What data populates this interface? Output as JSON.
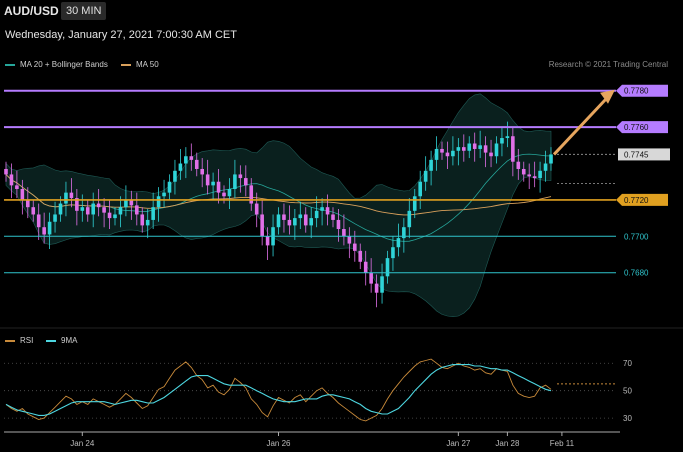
{
  "header": {
    "symbol": "AUD/USD",
    "timeframe": "30 MIN",
    "datetime": "Wednesday, January 27, 2021 7:00:30 AM CET"
  },
  "legend": {
    "bb_label": "MA 20 + Bollinger Bands",
    "bb_color": "#26a69a",
    "ma50_label": "MA 50",
    "ma50_color": "#d9a05b"
  },
  "credit": "Research © 2021 Trading Central",
  "rsi_legend": {
    "rsi_label": "RSI",
    "rsi_color": "#c88a3a",
    "ma_label": "9MA",
    "ma_color": "#4dd6e0"
  },
  "chart_data": {
    "type": "candlestick",
    "ylim": [
      0.7654,
      0.7787
    ],
    "levels": [
      {
        "value": 0.778,
        "label": "0.7780",
        "color": "#b57cff",
        "style": "resistance"
      },
      {
        "value": 0.776,
        "label": "0.7760",
        "color": "#b57cff",
        "style": "resistance"
      },
      {
        "value": 0.7745,
        "label": "0.7745",
        "color": "#d8d8d8",
        "style": "pivot"
      },
      {
        "value": 0.772,
        "label": "0.7720",
        "color": "#e0a020",
        "style": "support"
      },
      {
        "value": 0.77,
        "label": "0.7700",
        "color": "#2fc4cc",
        "style": "support"
      },
      {
        "value": 0.768,
        "label": "0.7680",
        "color": "#2fc4cc",
        "style": "support"
      }
    ],
    "arrow": {
      "from": 0.7745,
      "to": 0.778
    },
    "close_series": [
      0.7734,
      0.7728,
      0.7726,
      0.772,
      0.7716,
      0.7712,
      0.7705,
      0.7701,
      0.7708,
      0.7712,
      0.7718,
      0.7724,
      0.7721,
      0.7714,
      0.7716,
      0.7712,
      0.7718,
      0.7716,
      0.7713,
      0.771,
      0.7712,
      0.7716,
      0.772,
      0.7717,
      0.7712,
      0.7706,
      0.7709,
      0.7716,
      0.7722,
      0.7724,
      0.773,
      0.7736,
      0.774,
      0.7744,
      0.7742,
      0.7737,
      0.7734,
      0.7728,
      0.773,
      0.7724,
      0.7722,
      0.7726,
      0.7734,
      0.7732,
      0.7728,
      0.7718,
      0.7712,
      0.77,
      0.7695,
      0.7705,
      0.7712,
      0.7709,
      0.7706,
      0.771,
      0.7712,
      0.7706,
      0.771,
      0.7714,
      0.7716,
      0.7712,
      0.7709,
      0.7704,
      0.77,
      0.7696,
      0.7692,
      0.7686,
      0.768,
      0.7674,
      0.7669,
      0.7678,
      0.7688,
      0.7694,
      0.7699,
      0.7705,
      0.7714,
      0.7722,
      0.773,
      0.7736,
      0.7742,
      0.7748,
      0.7746,
      0.7744,
      0.7747,
      0.7749,
      0.7747,
      0.7751,
      0.7748,
      0.775,
      0.7746,
      0.7744,
      0.7751,
      0.7754,
      0.7755,
      0.7741,
      0.7737,
      0.7734,
      0.7733,
      0.7732,
      0.7736,
      0.774,
      0.7745
    ],
    "x_ticks": [
      {
        "label": "Jan 24",
        "index": 14
      },
      {
        "label": "Jan 26",
        "index": 50
      },
      {
        "label": "Jan 27",
        "index": 83
      },
      {
        "label": "Jan 28",
        "index": 92
      },
      {
        "label": "Feb 11",
        "index": 102
      }
    ],
    "rsi": {
      "ylim": [
        25,
        76
      ],
      "ticks": [
        70,
        50,
        30
      ],
      "rsi_series": [
        40,
        37,
        35,
        37,
        33,
        31,
        29,
        30,
        34,
        38,
        42,
        46,
        44,
        40,
        42,
        40,
        44,
        42,
        40,
        38,
        40,
        44,
        48,
        45,
        41,
        37,
        39,
        45,
        51,
        53,
        59,
        65,
        68,
        71,
        67,
        61,
        58,
        52,
        54,
        49,
        47,
        51,
        59,
        56,
        52,
        44,
        40,
        34,
        31,
        39,
        45,
        43,
        41,
        45,
        47,
        42,
        46,
        50,
        52,
        48,
        45,
        41,
        38,
        35,
        32,
        29,
        28,
        30,
        32,
        37,
        44,
        50,
        55,
        60,
        64,
        68,
        71,
        72,
        73,
        70,
        67,
        66,
        68,
        70,
        68,
        67,
        65,
        66,
        63,
        62,
        66,
        65,
        64,
        54,
        48,
        46,
        45,
        46,
        52,
        54,
        51
      ],
      "ma_series": [
        40,
        38,
        36,
        35,
        34,
        33,
        32,
        32,
        33,
        35,
        37,
        39,
        41,
        42,
        42,
        42,
        42,
        42,
        42,
        41,
        40,
        41,
        42,
        43,
        43,
        42,
        41,
        41,
        43,
        45,
        48,
        51,
        54,
        57,
        60,
        61,
        61,
        61,
        59,
        57,
        55,
        54,
        54,
        54,
        54,
        52,
        50,
        48,
        46,
        44,
        43,
        42,
        42,
        42,
        43,
        44,
        44,
        44,
        46,
        47,
        47,
        46,
        45,
        44,
        42,
        40,
        37,
        35,
        34,
        33,
        33,
        35,
        37,
        41,
        45,
        50,
        54,
        58,
        62,
        65,
        67,
        68,
        69,
        69,
        69,
        69,
        68,
        68,
        67,
        66,
        66,
        65,
        65,
        63,
        61,
        59,
        57,
        55,
        53,
        51,
        50
      ]
    }
  }
}
